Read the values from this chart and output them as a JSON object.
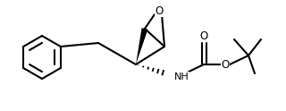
{
  "bg_color": "#ffffff",
  "line_color": "#000000",
  "line_width": 1.5,
  "figsize": [
    3.2,
    1.24
  ],
  "dpi": 100,
  "atoms": {
    "O_epoxide": "O",
    "O_carbonyl": "O",
    "O_ester": "O",
    "N": "NH"
  }
}
